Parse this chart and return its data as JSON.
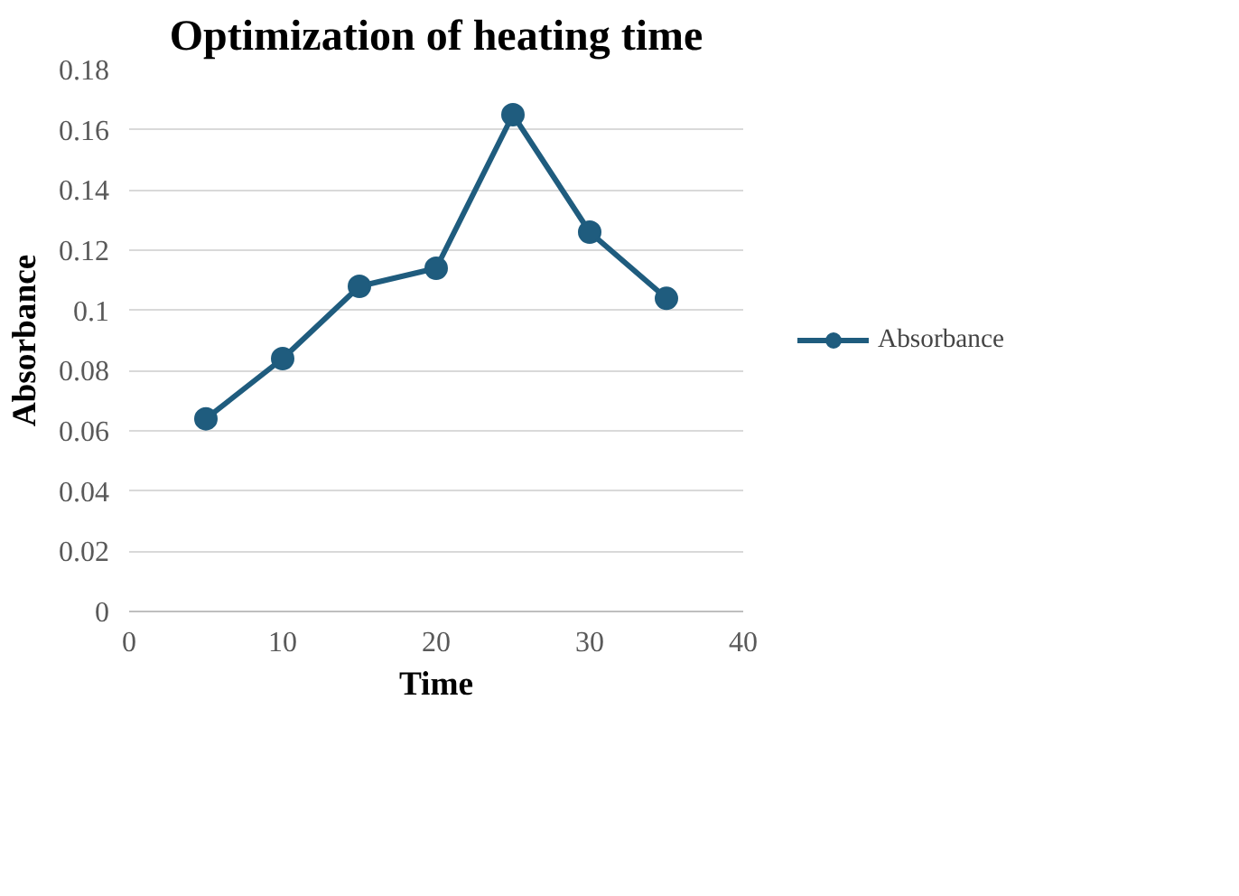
{
  "chart_data": {
    "type": "line",
    "title": "Optimization of heating time",
    "xlabel": "Time",
    "ylabel": "Absorbance",
    "x": [
      5,
      10,
      15,
      20,
      25,
      30,
      35
    ],
    "series": [
      {
        "name": "Absorbance",
        "color": "#1f5c7e",
        "values": [
          0.064,
          0.084,
          0.108,
          0.114,
          0.165,
          0.126,
          0.104
        ]
      }
    ],
    "xlim": [
      0,
      40
    ],
    "xticks": [
      0,
      10,
      20,
      30,
      40
    ],
    "ylim": [
      0,
      0.18
    ],
    "yticks": [
      0,
      {
        "value": 0.02,
        "label": "0.02"
      },
      {
        "value": 0.04,
        "label": "0.04"
      },
      {
        "value": 0.06,
        "label": "0.06"
      },
      {
        "value": 0.08,
        "label": "0.08"
      },
      {
        "value": 0.1,
        "label": "0.1"
      },
      {
        "value": 0.12,
        "label": "0.12"
      },
      {
        "value": 0.14,
        "label": "0.14"
      },
      {
        "value": 0.16,
        "label": "0.16"
      },
      {
        "value": 0.18,
        "label": "0.18"
      }
    ],
    "grid": "y",
    "legend": "right",
    "marker": "circle",
    "line_style": "solid"
  }
}
